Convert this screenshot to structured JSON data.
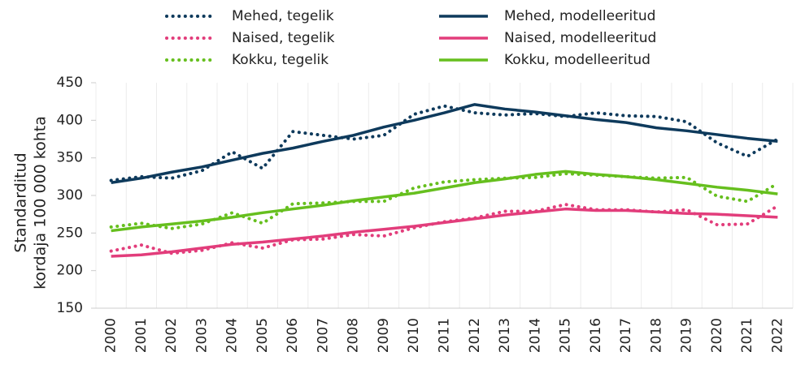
{
  "chart_data": {
    "type": "line",
    "ylabel": [
      "Standarditud",
      "kordaja 100 000 kohta"
    ],
    "categories": [
      "2000",
      "2001",
      "2002",
      "2003",
      "2004",
      "2005",
      "2006",
      "2007",
      "2008",
      "2009",
      "2010",
      "2011",
      "2012",
      "2013",
      "2014",
      "2015",
      "2016",
      "2017",
      "2018",
      "2019",
      "2020",
      "2021",
      "2022"
    ],
    "series": [
      {
        "name": "Mehed, tegelik",
        "color": "#0e3a5c",
        "style": "dotted",
        "values": [
          320,
          325,
          323,
          333,
          358,
          336,
          385,
          380,
          375,
          380,
          408,
          419,
          410,
          407,
          409,
          405,
          410,
          406,
          405,
          398,
          370,
          352,
          375
        ]
      },
      {
        "name": "Mehed, modelleeritud",
        "color": "#0e3a5c",
        "style": "solid",
        "values": [
          317,
          323,
          331,
          338,
          347,
          356,
          363,
          372,
          380,
          391,
          400,
          410,
          421,
          415,
          411,
          406,
          401,
          397,
          390,
          386,
          381,
          376,
          372
        ]
      },
      {
        "name": "Naised, tegelik",
        "color": "#e23d7b",
        "style": "dotted",
        "values": [
          226,
          234,
          223,
          227,
          237,
          230,
          241,
          242,
          248,
          246,
          257,
          265,
          270,
          279,
          279,
          288,
          281,
          281,
          278,
          281,
          261,
          262,
          286
        ]
      },
      {
        "name": "Naised, modelleeritud",
        "color": "#e23d7b",
        "style": "solid",
        "values": [
          219,
          221,
          225,
          230,
          235,
          238,
          242,
          246,
          251,
          255,
          259,
          264,
          269,
          274,
          278,
          282,
          280,
          280,
          278,
          276,
          275,
          273,
          271
        ]
      },
      {
        "name": "Kokku, tegelik",
        "color": "#66bf1e",
        "style": "dotted",
        "values": [
          258,
          263,
          256,
          262,
          277,
          263,
          289,
          290,
          292,
          292,
          310,
          318,
          321,
          323,
          324,
          329,
          327,
          325,
          323,
          324,
          299,
          292,
          316
        ]
      },
      {
        "name": "Kokku, modelleeritud",
        "color": "#66bf1e",
        "style": "solid",
        "values": [
          253,
          258,
          262,
          266,
          271,
          277,
          282,
          287,
          293,
          298,
          303,
          310,
          317,
          322,
          328,
          332,
          328,
          325,
          321,
          316,
          311,
          307,
          302
        ]
      }
    ],
    "ylim": [
      150,
      450
    ],
    "yticks": [
      150,
      200,
      250,
      300,
      350,
      400,
      450
    ]
  }
}
